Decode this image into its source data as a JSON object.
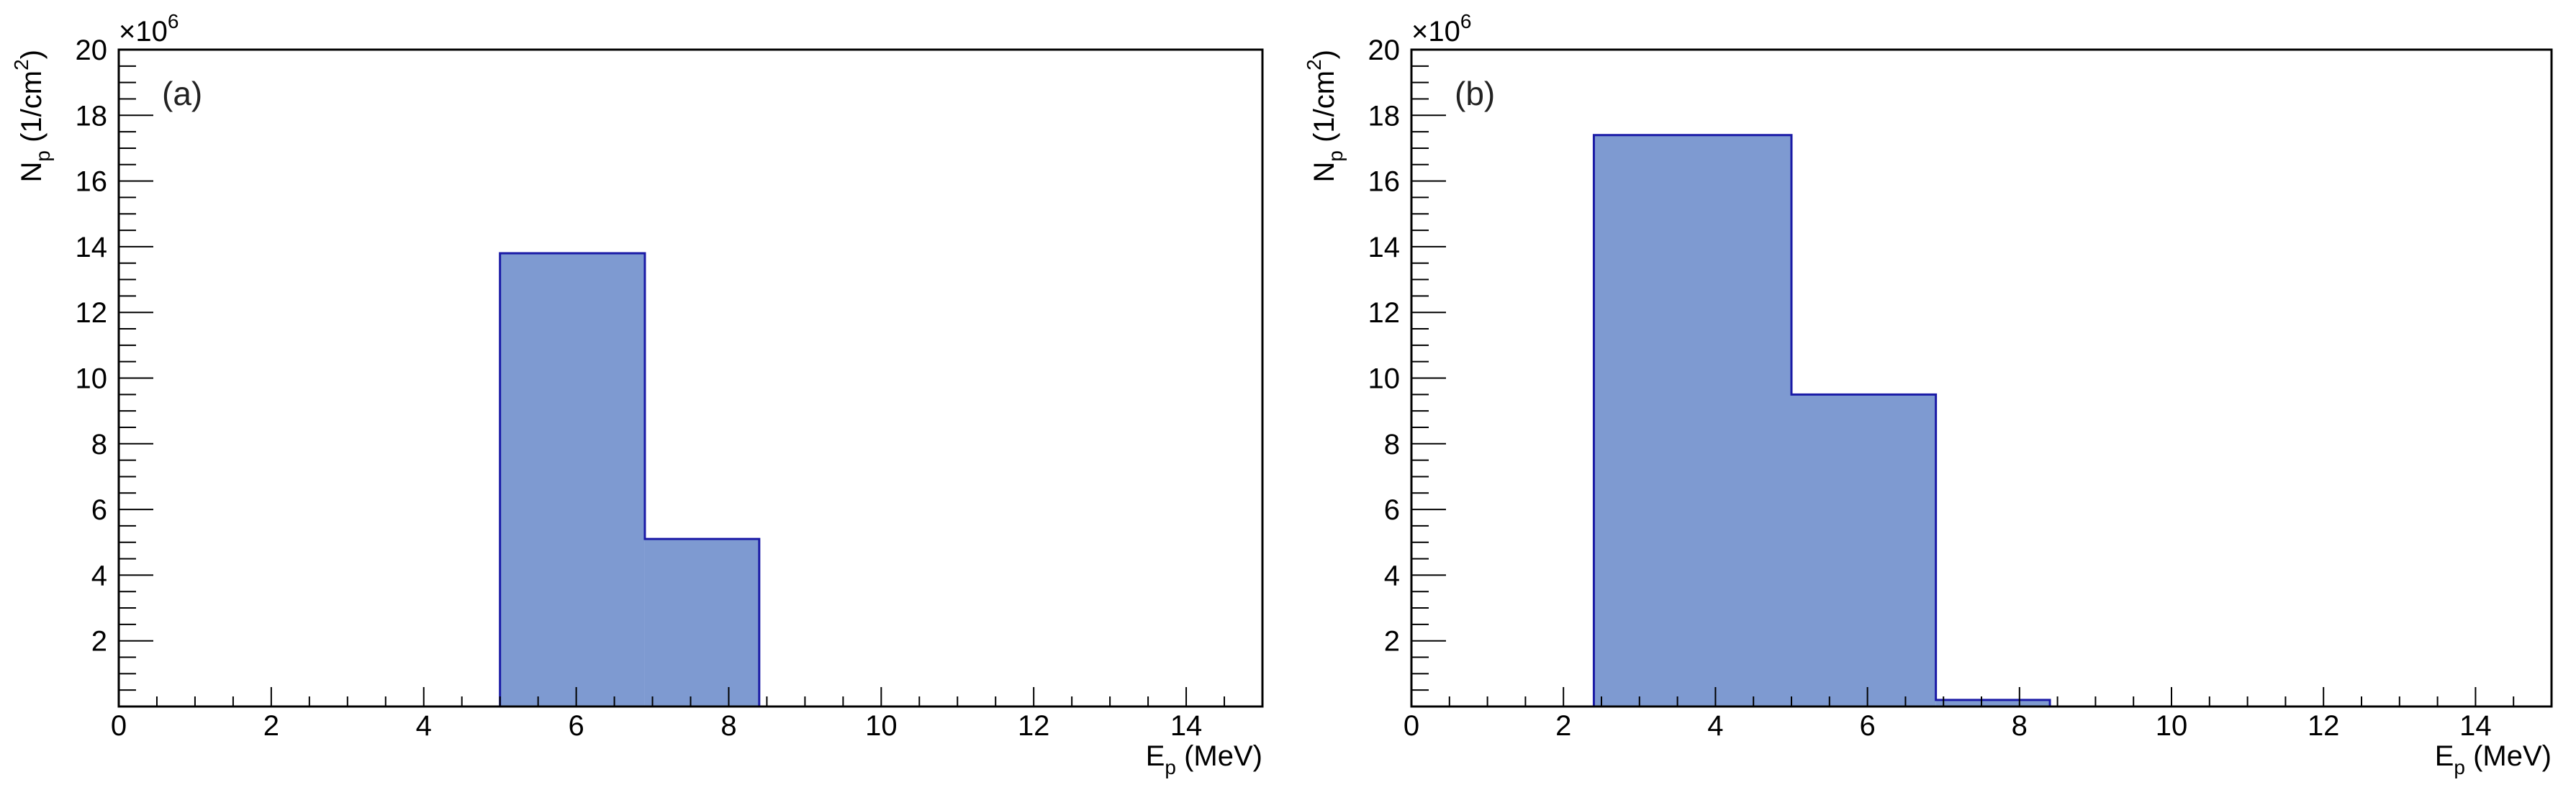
{
  "figure": {
    "panels": [
      {
        "label": "(a)",
        "ylabel_main": "N",
        "ylabel_sub": "p",
        "ylabel_rest": " (1/cm",
        "ylabel_sup": "2",
        "ylabel_end": ")",
        "xlabel_main": "E",
        "xlabel_sub": "p",
        "xlabel_rest": " (MeV)",
        "y_multiplier_base": "×10",
        "y_multiplier_exp": "6"
      },
      {
        "label": "(b)",
        "ylabel_main": "N",
        "ylabel_sub": "p",
        "ylabel_rest": " (1/cm",
        "ylabel_sup": "2",
        "ylabel_end": ")",
        "xlabel_main": "E",
        "xlabel_sub": "p",
        "xlabel_rest": " (MeV)",
        "y_multiplier_base": "×10",
        "y_multiplier_exp": "6"
      }
    ]
  },
  "colors": {
    "fill": "#7e9ad1",
    "line": "#1a1aa6",
    "axis": "#000000"
  },
  "chart_data": [
    {
      "type": "bar",
      "histogram": true,
      "title": "(a)",
      "xlabel": "E_p (MeV)",
      "ylabel": "N_p (1/cm^2)",
      "y_multiplier": "x10^6",
      "xlim": [
        0,
        15
      ],
      "ylim": [
        0,
        20
      ],
      "xticks": [
        0,
        2,
        4,
        6,
        8,
        10,
        12,
        14
      ],
      "yticks": [
        2,
        4,
        6,
        8,
        10,
        12,
        14,
        16,
        18,
        20
      ],
      "grid": false,
      "bins": [
        {
          "x0": 5.0,
          "x1": 6.9,
          "value": 13.8
        },
        {
          "x0": 6.9,
          "x1": 8.4,
          "value": 5.1
        }
      ]
    },
    {
      "type": "bar",
      "histogram": true,
      "title": "(b)",
      "xlabel": "E_p (MeV)",
      "ylabel": "N_p (1/cm^2)",
      "y_multiplier": "x10^6",
      "xlim": [
        0,
        15
      ],
      "ylim": [
        0,
        20
      ],
      "xticks": [
        0,
        2,
        4,
        6,
        8,
        10,
        12,
        14
      ],
      "yticks": [
        2,
        4,
        6,
        8,
        10,
        12,
        14,
        16,
        18,
        20
      ],
      "grid": false,
      "bins": [
        {
          "x0": 2.4,
          "x1": 5.0,
          "value": 17.4
        },
        {
          "x0": 5.0,
          "x1": 6.9,
          "value": 9.5
        },
        {
          "x0": 6.9,
          "x1": 8.4,
          "value": 0.2
        }
      ]
    }
  ]
}
